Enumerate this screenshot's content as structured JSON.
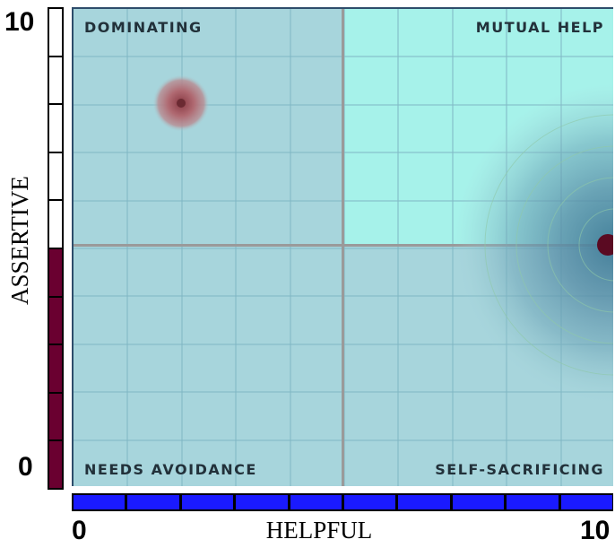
{
  "y_axis": {
    "label": "ASSERTIVE",
    "min_label": "0",
    "max_label": "10",
    "level": 5
  },
  "x_axis": {
    "label": "HELPFUL",
    "min_label": "0",
    "max_label": "10",
    "level": 10
  },
  "quadrants": {
    "top_left": "DOMINATING",
    "top_right": "MUTUAL HELP",
    "bottom_left": "NEEDS AVOIDANCE",
    "bottom_right": "SELF-SACRIFICING"
  },
  "colors": {
    "plot_bg": "#a7d5dc",
    "mutual_help_bg": "#a6f2ea",
    "assertive_fill": "#6a0030",
    "helpful_fill": "#1a1aff",
    "marker_small": "#b06a72",
    "marker_large": "#5a8fa8"
  },
  "markers": [
    {
      "name": "small-blob",
      "helpful": 2,
      "assertive": 8
    },
    {
      "name": "large-blob",
      "helpful": 10,
      "assertive": 5
    }
  ]
}
